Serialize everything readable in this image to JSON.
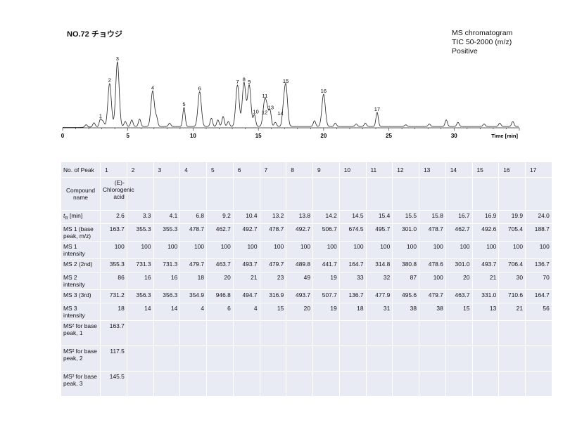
{
  "header": {
    "title": "NO.72 チョウジ",
    "info_line1": "MS chromatogram",
    "info_line2": "TIC 50-2000 (m/z)",
    "info_line3": "Positive"
  },
  "chart_data": {
    "type": "line",
    "xlabel": "Time [min]",
    "xlim": [
      0,
      35
    ],
    "x_ticks": [
      0,
      5,
      10,
      15,
      20,
      25,
      30
    ],
    "peaks": [
      {
        "label": "1",
        "x": 2.9,
        "height": 0.09
      },
      {
        "label": "2",
        "x": 3.6,
        "height": 0.52
      },
      {
        "label": "3",
        "x": 4.2,
        "height": 0.78
      },
      {
        "label": "4",
        "x": 6.9,
        "height": 0.43
      },
      {
        "label": "5",
        "x": 9.3,
        "height": 0.23
      },
      {
        "label": "6",
        "x": 10.5,
        "height": 0.42
      },
      {
        "label": "7",
        "x": 13.4,
        "height": 0.5
      },
      {
        "label": "8",
        "x": 13.9,
        "height": 0.53
      },
      {
        "label": "9",
        "x": 14.3,
        "height": 0.5
      },
      {
        "label": "10",
        "x": 14.7,
        "height": 0.14
      },
      {
        "label": "11",
        "x": 15.5,
        "height": 0.33
      },
      {
        "label": "12",
        "x": 15.7,
        "height": 0.13
      },
      {
        "label": "13",
        "x": 15.9,
        "height": 0.19
      },
      {
        "label": "14",
        "x": 16.9,
        "height": 0.12
      },
      {
        "label": "15",
        "x": 17.1,
        "height": 0.51
      },
      {
        "label": "16",
        "x": 20.0,
        "height": 0.39
      },
      {
        "label": "17",
        "x": 24.1,
        "height": 0.17
      }
    ],
    "minor_peaks": [
      {
        "x": 1.8,
        "height": 0.03
      },
      {
        "x": 2.4,
        "height": 0.05
      },
      {
        "x": 3.1,
        "height": 0.06
      },
      {
        "x": 4.8,
        "height": 0.06
      },
      {
        "x": 5.3,
        "height": 0.08
      },
      {
        "x": 5.9,
        "height": 0.09
      },
      {
        "x": 7.2,
        "height": 0.1
      },
      {
        "x": 8.2,
        "height": 0.04
      },
      {
        "x": 11.4,
        "height": 0.1
      },
      {
        "x": 11.9,
        "height": 0.08
      },
      {
        "x": 12.3,
        "height": 0.12
      },
      {
        "x": 12.7,
        "height": 0.06
      },
      {
        "x": 16.3,
        "height": 0.05
      },
      {
        "x": 19.3,
        "height": 0.07
      },
      {
        "x": 20.9,
        "height": 0.04
      },
      {
        "x": 22.5,
        "height": 0.03
      },
      {
        "x": 23.2,
        "height": 0.04
      },
      {
        "x": 26.3,
        "height": 0.02
      },
      {
        "x": 28.1,
        "height": 0.03
      },
      {
        "x": 29.4,
        "height": 0.08
      },
      {
        "x": 30.3,
        "height": 0.05
      },
      {
        "x": 32.3,
        "height": 0.03
      },
      {
        "x": 33.5,
        "height": 0.04
      },
      {
        "x": 34.5,
        "height": 0.06
      }
    ]
  },
  "table": {
    "row_headers": {
      "peak": "No. of Peak",
      "compound": "Compound name",
      "tr": "[min]",
      "tr_symbol": "t",
      "tr_sub": "R",
      "ms1": "MS 1 (base peak, m/z)",
      "ms1_int": "MS 1 intensity",
      "ms2": "MS 2 (2nd)",
      "ms2_int": "MS 2 intensity",
      "ms3": "MS 3 (3rd)",
      "ms3_int": "MS 3 intensity",
      "msb1": "MS² for base peak, 1",
      "msb2": "MS² for base peak, 2",
      "msb3": "MS² for base peak, 3"
    },
    "peak_no": [
      "1",
      "2",
      "3",
      "4",
      "5",
      "6",
      "7",
      "8",
      "9",
      "10",
      "11",
      "12",
      "13",
      "14",
      "15",
      "16",
      "17"
    ],
    "compound": [
      "(E)-Chlorogenic acid",
      "",
      "",
      "",
      "",
      "",
      "",
      "",
      "",
      "",
      "",
      "",
      "",
      "",
      "",
      "",
      ""
    ],
    "tr": [
      "2.6",
      "3.3",
      "4.1",
      "6.8",
      "9.2",
      "10.4",
      "13.2",
      "13.8",
      "14.2",
      "14.5",
      "15.4",
      "15.5",
      "15.8",
      "16.7",
      "16.9",
      "19.9",
      "24.0"
    ],
    "ms1": [
      "163.7",
      "355.3",
      "355.3",
      "478.7",
      "462.7",
      "492.7",
      "478.7",
      "492.7",
      "506.7",
      "674.5",
      "495.7",
      "301.0",
      "478.7",
      "462.7",
      "492.6",
      "705.4",
      "188.7"
    ],
    "ms1_int": [
      "100",
      "100",
      "100",
      "100",
      "100",
      "100",
      "100",
      "100",
      "100",
      "100",
      "100",
      "100",
      "100",
      "100",
      "100",
      "100",
      "100"
    ],
    "ms2": [
      "355.3",
      "731.3",
      "731.3",
      "479.7",
      "463.7",
      "493.7",
      "479.7",
      "489.8",
      "441.7",
      "164.7",
      "314.8",
      "380.8",
      "478.6",
      "301.0",
      "493.7",
      "706.4",
      "136.7"
    ],
    "ms2_int": [
      "86",
      "16",
      "16",
      "18",
      "20",
      "21",
      "23",
      "49",
      "19",
      "33",
      "32",
      "87",
      "100",
      "20",
      "21",
      "30",
      "70"
    ],
    "ms3": [
      "731.2",
      "356.3",
      "356.3",
      "354.9",
      "946.8",
      "494.7",
      "316.9",
      "493.7",
      "507.7",
      "136.7",
      "477.9",
      "495.6",
      "479.7",
      "463.7",
      "331.0",
      "710.6",
      "164.7"
    ],
    "ms3_int": [
      "18",
      "14",
      "14",
      "4",
      "6",
      "4",
      "15",
      "20",
      "19",
      "18",
      "31",
      "38",
      "38",
      "15",
      "13",
      "21",
      "56"
    ],
    "msb1": [
      "163.7",
      "",
      "",
      "",
      "",
      "",
      "",
      "",
      "",
      "",
      "",
      "",
      "",
      "",
      "",
      "",
      ""
    ],
    "msb2": [
      "117.5",
      "",
      "",
      "",
      "",
      "",
      "",
      "",
      "",
      "",
      "",
      "",
      "",
      "",
      "",
      "",
      ""
    ],
    "msb3": [
      "145.5",
      "",
      "",
      "",
      "",
      "",
      "",
      "",
      "",
      "",
      "",
      "",
      "",
      "",
      "",
      "",
      ""
    ]
  }
}
